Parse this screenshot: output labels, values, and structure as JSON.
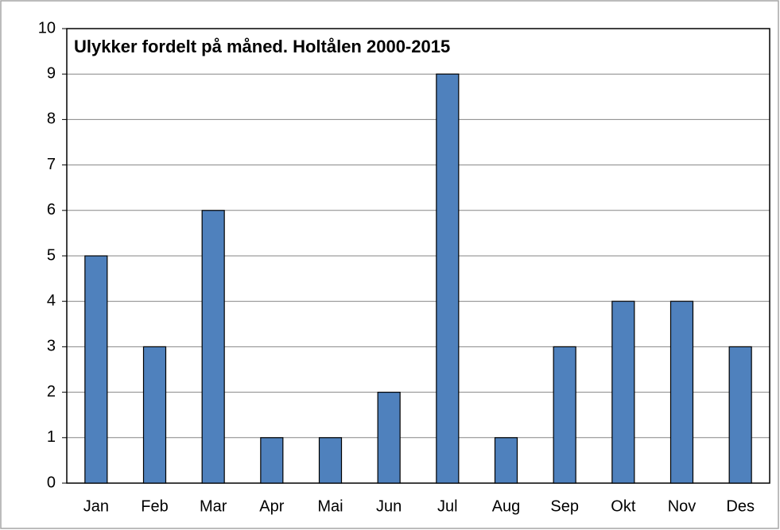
{
  "chart_data": {
    "type": "bar",
    "title": "Ulykker fordelt på måned. Holtålen 2000-2015",
    "categories": [
      "Jan",
      "Feb",
      "Mar",
      "Apr",
      "Mai",
      "Jun",
      "Jul",
      "Aug",
      "Sep",
      "Okt",
      "Nov",
      "Des"
    ],
    "values": [
      5,
      3,
      6,
      1,
      1,
      2,
      9,
      1,
      3,
      4,
      4,
      3
    ],
    "color": "#4f81bd",
    "ylim": [
      0,
      10
    ],
    "yticks": [
      0,
      1,
      2,
      3,
      4,
      5,
      6,
      7,
      8,
      9,
      10
    ],
    "grid": true
  }
}
